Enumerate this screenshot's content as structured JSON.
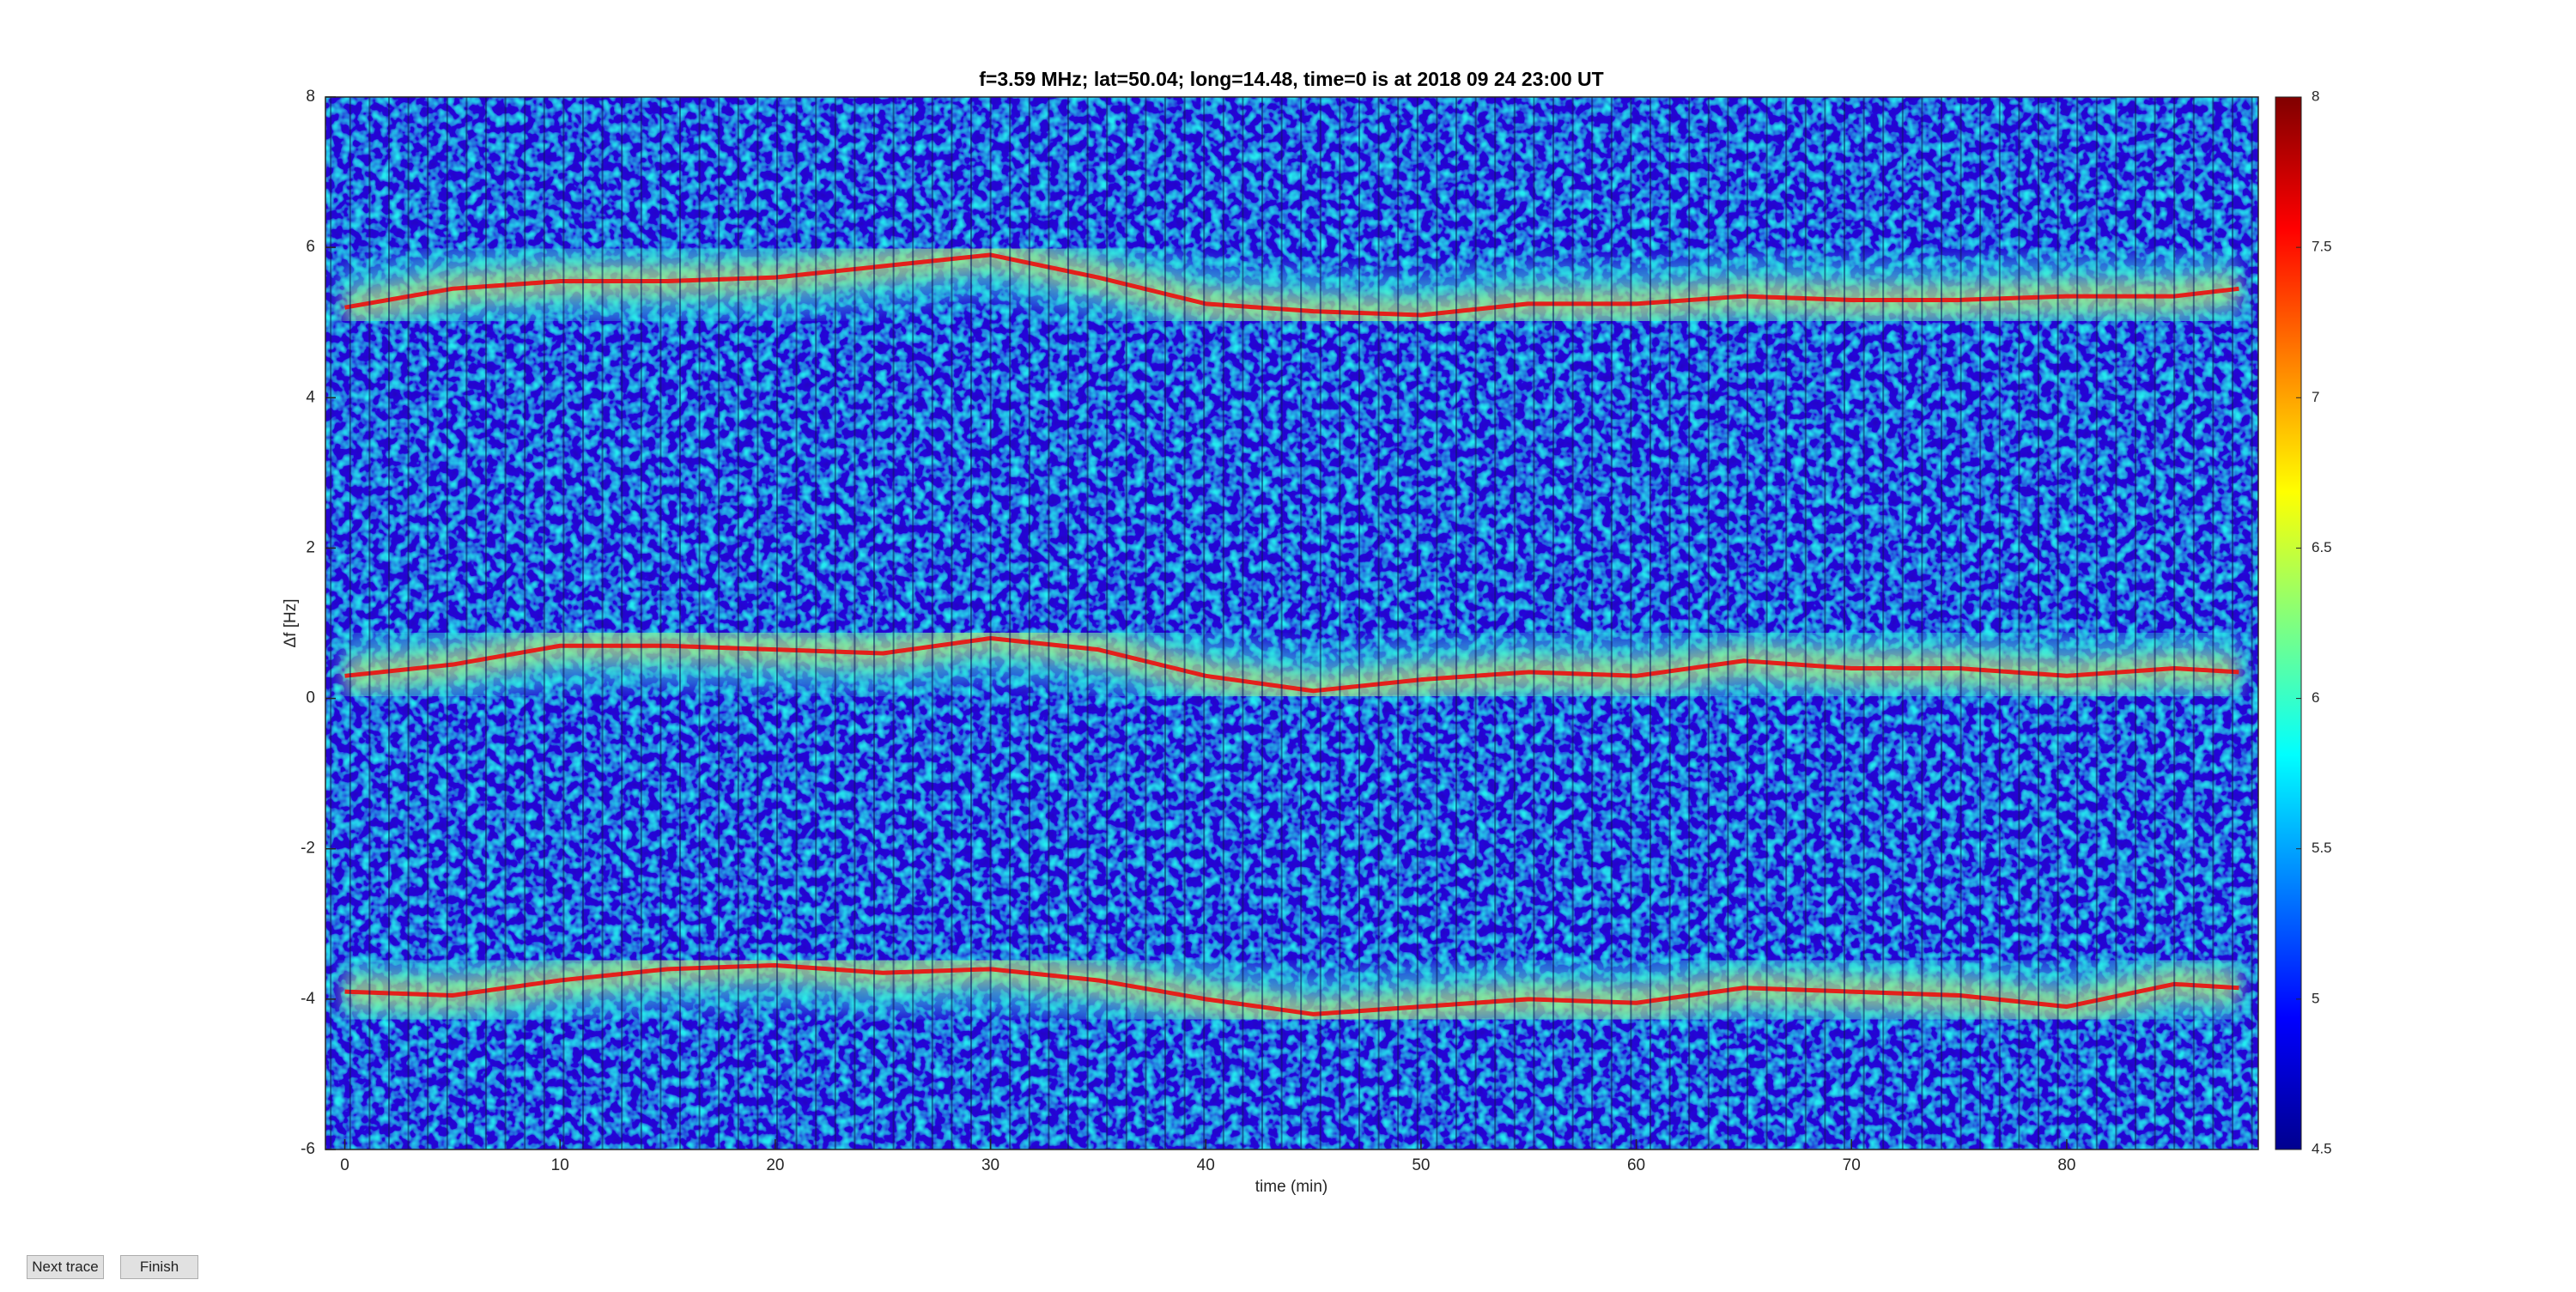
{
  "chart_data": {
    "type": "spectrogram",
    "title": "f=3.59 MHz;  lat=50.04; long=14.48, time=0 is at 2018 09 24 23:00 UT",
    "xlabel": "time (min)",
    "ylabel": "Δf [Hz]",
    "xlim": [
      -0.9,
      88.9
    ],
    "xticks": [
      0,
      10,
      20,
      30,
      40,
      50,
      60,
      70,
      80
    ],
    "ylim": [
      -6,
      8
    ],
    "yticks": [
      -6,
      -4,
      -2,
      0,
      2,
      4,
      6,
      8
    ],
    "clim": [
      4.5,
      8
    ],
    "cticks": [
      4.5,
      5,
      5.5,
      6,
      6.5,
      7,
      7.5,
      8
    ],
    "x": [
      0,
      5,
      10,
      15,
      20,
      25,
      30,
      35,
      40,
      45,
      50,
      55,
      60,
      65,
      70,
      75,
      80,
      85,
      88
    ],
    "series": [
      {
        "color": "#e3201b",
        "values": [
          5.2,
          5.45,
          5.55,
          5.55,
          5.6,
          5.75,
          5.9,
          5.6,
          5.25,
          5.15,
          5.1,
          5.25,
          5.25,
          5.35,
          5.3,
          5.3,
          5.35,
          5.35,
          5.45
        ]
      },
      {
        "color": "#e3201b",
        "values": [
          0.3,
          0.45,
          0.7,
          0.7,
          0.65,
          0.6,
          0.8,
          0.65,
          0.3,
          0.1,
          0.25,
          0.35,
          0.3,
          0.5,
          0.4,
          0.4,
          0.3,
          0.4,
          0.35
        ]
      },
      {
        "color": "#e3201b",
        "values": [
          -3.9,
          -3.95,
          -3.75,
          -3.6,
          -3.55,
          -3.65,
          -3.6,
          -3.75,
          -4.0,
          -4.2,
          -4.1,
          -4.0,
          -4.05,
          -3.85,
          -3.9,
          -3.95,
          -4.1,
          -3.8,
          -3.85
        ]
      }
    ]
  },
  "buttons": [
    "Next trace",
    "Finish"
  ]
}
